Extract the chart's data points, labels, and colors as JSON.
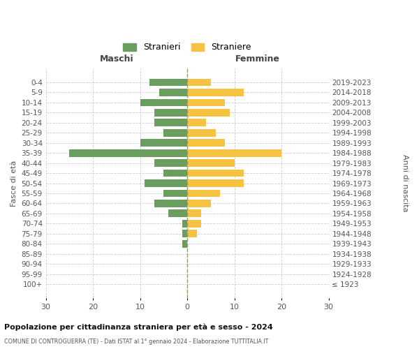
{
  "age_groups": [
    "0-4",
    "5-9",
    "10-14",
    "15-19",
    "20-24",
    "25-29",
    "30-34",
    "35-39",
    "40-44",
    "45-49",
    "50-54",
    "55-59",
    "60-64",
    "65-69",
    "70-74",
    "75-79",
    "80-84",
    "85-89",
    "90-94",
    "95-99",
    "100+"
  ],
  "birth_years": [
    "2019-2023",
    "2014-2018",
    "2009-2013",
    "2004-2008",
    "1999-2003",
    "1994-1998",
    "1989-1993",
    "1984-1988",
    "1979-1983",
    "1974-1978",
    "1969-1973",
    "1964-1968",
    "1959-1963",
    "1954-1958",
    "1949-1953",
    "1944-1948",
    "1939-1943",
    "1934-1938",
    "1929-1933",
    "1924-1928",
    "≤ 1923"
  ],
  "maschi": [
    8,
    6,
    10,
    7,
    7,
    5,
    10,
    25,
    7,
    5,
    9,
    5,
    7,
    4,
    1,
    1,
    1,
    0,
    0,
    0,
    0
  ],
  "femmine": [
    5,
    12,
    8,
    9,
    4,
    6,
    8,
    20,
    10,
    12,
    12,
    7,
    5,
    3,
    3,
    2,
    0,
    0,
    0,
    0,
    0
  ],
  "color_maschi": "#6a9e5e",
  "color_femmine": "#f5c242",
  "title_main": "Popolazione per cittadinanza straniera per età e sesso - 2024",
  "title_sub": "COMUNE DI CONTROGUERRA (TE) - Dati ISTAT al 1° gennaio 2024 - Elaborazione TUTTITALIA.IT",
  "xlabel_left": "Maschi",
  "xlabel_right": "Femmine",
  "ylabel_left": "Fasce di età",
  "ylabel_right": "Anni di nascita",
  "legend_maschi": "Stranieri",
  "legend_femmine": "Straniere",
  "xlim": 30,
  "background_color": "#ffffff",
  "grid_color": "#cccccc",
  "bar_height": 0.75
}
